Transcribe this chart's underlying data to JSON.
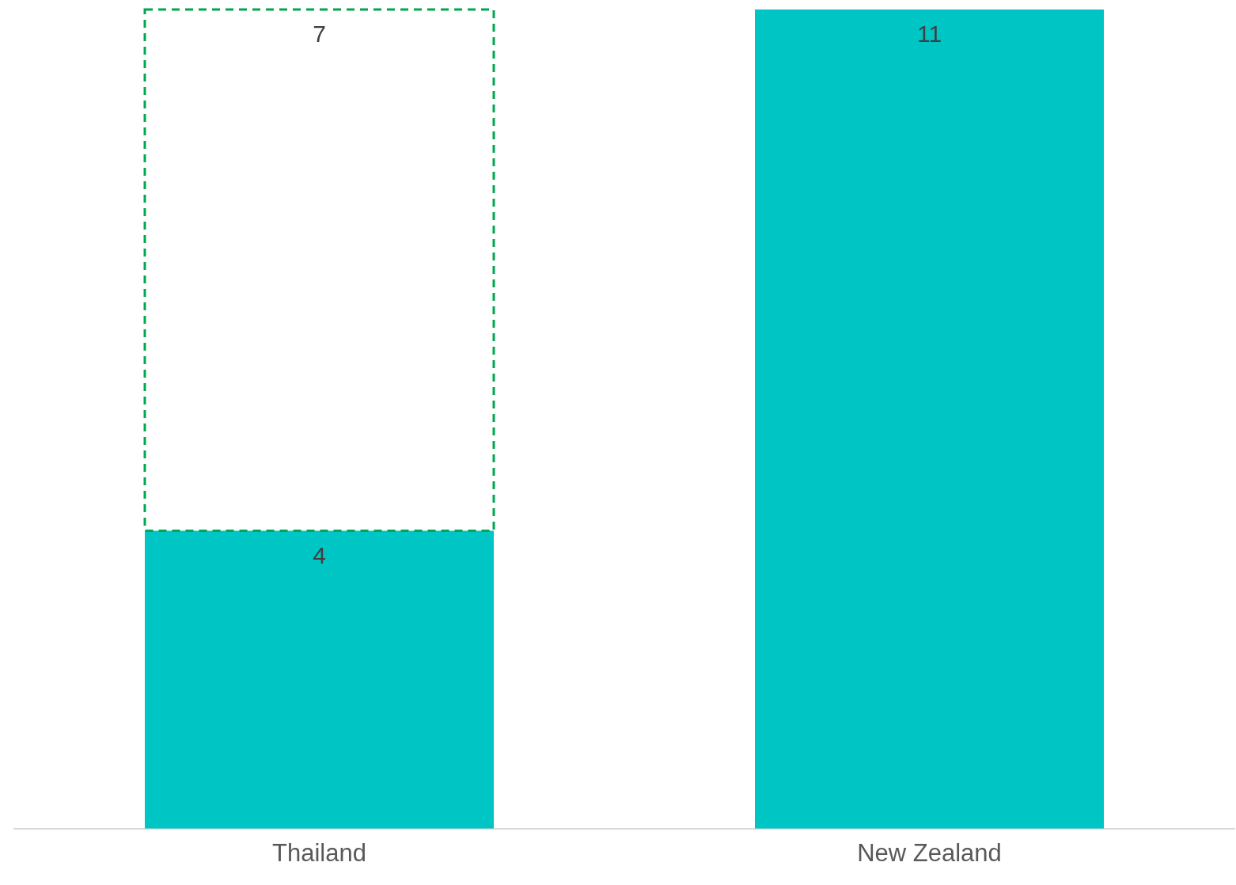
{
  "chart_data": {
    "type": "bar",
    "stacked": true,
    "categories": [
      "Thailand",
      "New Zealand"
    ],
    "ylim": [
      0,
      11
    ],
    "data_labels": true,
    "series": [
      {
        "color": "#00c5c5",
        "values": [
          4,
          11
        ]
      },
      {
        "color": "#00a650",
        "line_style": "dashed",
        "values": [
          7,
          null
        ]
      }
    ]
  }
}
